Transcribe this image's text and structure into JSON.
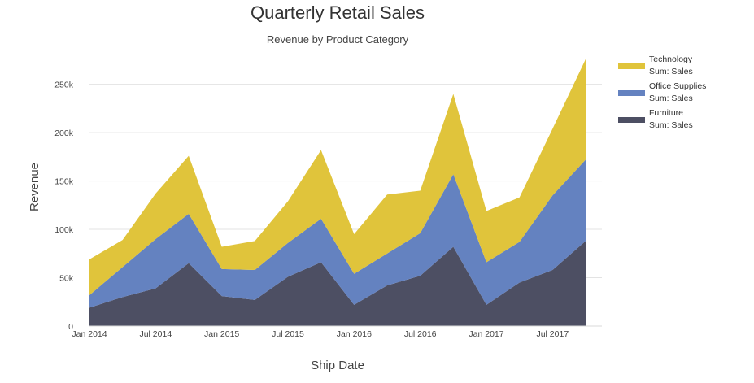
{
  "chart_data": {
    "type": "area",
    "stacked": true,
    "title": "Quarterly Retail Sales",
    "subtitle": "Revenue by Product Category",
    "xlabel": "Ship Date",
    "ylabel": "Revenue",
    "x": [
      "2014-01",
      "2014-04",
      "2014-07",
      "2014-10",
      "2015-01",
      "2015-04",
      "2015-07",
      "2015-10",
      "2016-01",
      "2016-04",
      "2016-07",
      "2016-10",
      "2017-01",
      "2017-04",
      "2017-07",
      "2017-10"
    ],
    "x_ticks": [
      {
        "value": "2014-01",
        "label": "Jan 2014"
      },
      {
        "value": "2014-07",
        "label": "Jul 2014"
      },
      {
        "value": "2015-01",
        "label": "Jan 2015"
      },
      {
        "value": "2015-07",
        "label": "Jul 2015"
      },
      {
        "value": "2016-01",
        "label": "Jan 2016"
      },
      {
        "value": "2016-07",
        "label": "Jul 2016"
      },
      {
        "value": "2017-01",
        "label": "Jan 2017"
      },
      {
        "value": "2017-07",
        "label": "Jul 2017"
      }
    ],
    "ylim": [
      0,
      285000
    ],
    "y_ticks": [
      {
        "value": 0,
        "label": "0"
      },
      {
        "value": 50000,
        "label": "50k"
      },
      {
        "value": 100000,
        "label": "100k"
      },
      {
        "value": 150000,
        "label": "150k"
      },
      {
        "value": 200000,
        "label": "200k"
      },
      {
        "value": 250000,
        "label": "250k"
      }
    ],
    "grid": true,
    "legend_position": "top-right",
    "series": [
      {
        "name": "Furniture",
        "label": "Sum: Sales",
        "color": "#4d4f63",
        "values": [
          19000,
          30000,
          39000,
          65000,
          31000,
          27000,
          51000,
          66000,
          22000,
          42000,
          52000,
          82000,
          22000,
          45000,
          58000,
          88000
        ]
      },
      {
        "name": "Office Supplies",
        "label": "Sum: Sales",
        "color": "#6482c0",
        "values": [
          13000,
          31000,
          51000,
          51000,
          28000,
          31000,
          35000,
          45000,
          32000,
          33000,
          44000,
          75000,
          44000,
          42000,
          77000,
          84000
        ]
      },
      {
        "name": "Technology",
        "label": "Sum: Sales",
        "color": "#e0c43b",
        "values": [
          37000,
          28000,
          47000,
          60000,
          23000,
          30000,
          43000,
          71000,
          41000,
          61000,
          44000,
          83000,
          53000,
          46000,
          69000,
          104000
        ]
      }
    ],
    "legend_order": [
      "Technology",
      "Office Supplies",
      "Furniture"
    ]
  }
}
